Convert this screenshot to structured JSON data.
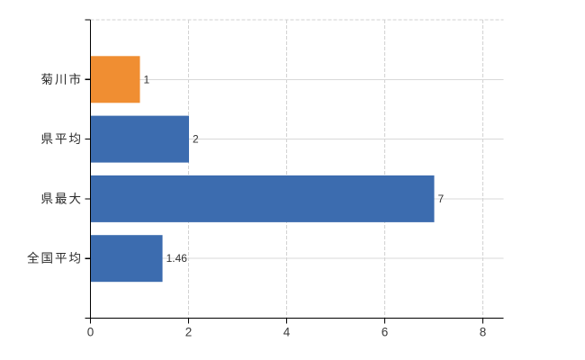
{
  "chart_data": {
    "type": "bar",
    "orientation": "horizontal",
    "title": "",
    "xlabel": "",
    "ylabel": "",
    "categories": [
      "菊川市",
      "県平均",
      "県最大",
      "全国平均"
    ],
    "values": [
      1,
      2,
      7,
      1.46
    ],
    "value_labels": [
      "1",
      "2",
      "7",
      "1.46"
    ],
    "bar_colors": [
      "#f08e32",
      "#3c6caf",
      "#3c6caf",
      "#3c6caf"
    ],
    "xlim": [
      0,
      8.4
    ],
    "x_ticks": [
      0,
      2,
      4,
      6,
      8
    ],
    "x_tick_labels": [
      "0",
      "2",
      "4",
      "6",
      "8"
    ],
    "grid": true,
    "legend": false,
    "colors": {
      "highlight_bar": "#f08e32",
      "default_bar": "#3c6caf",
      "gridline": "#d2d2d2",
      "row_line": "#d8d8d8",
      "axis": "#000000",
      "label_text": "#2b2b2b",
      "value_text": "#333333"
    }
  }
}
